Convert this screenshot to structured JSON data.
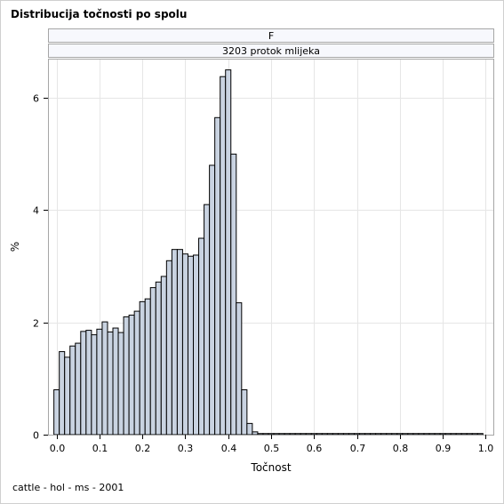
{
  "title": "Distribucija točnosti po spolu",
  "footnote": "cattle - hol - ms - 2001",
  "panel": {
    "row1": "F",
    "row2": "3203 protok mlijeka"
  },
  "colors": {
    "bar_fill": "#c9d3e1",
    "bar_stroke": "#000000",
    "grid": "#e6e6e6",
    "strip_bg": "#f7f8fd"
  },
  "chart_data": {
    "type": "bar",
    "subtype": "histogram",
    "xlabel": "Točnost",
    "ylabel": "%",
    "xlim": [
      -0.02,
      1.02
    ],
    "ylim": [
      0,
      6.7
    ],
    "xticks": [
      "0.0",
      "0.1",
      "0.2",
      "0.3",
      "0.4",
      "0.5",
      "0.6",
      "0.7",
      "0.8",
      "0.9",
      "1.0"
    ],
    "yticks": [
      "0",
      "2",
      "4",
      "6"
    ],
    "grid": true,
    "bin_width": 0.0125,
    "bin_starts": [
      -0.00625,
      0.00625,
      0.01875,
      0.03125,
      0.04375,
      0.05625,
      0.06875,
      0.08125,
      0.09375,
      0.10625,
      0.11875,
      0.13125,
      0.14375,
      0.15625,
      0.16875,
      0.18125,
      0.19375,
      0.20625,
      0.21875,
      0.23125,
      0.24375,
      0.25625,
      0.26875,
      0.28125,
      0.29375,
      0.30625,
      0.31875,
      0.33125,
      0.34375,
      0.35625,
      0.36875,
      0.38125,
      0.39375,
      0.40625,
      0.41875,
      0.43125,
      0.44375,
      0.45625,
      0.46875,
      0.48125,
      0.49375,
      0.50625,
      0.51875,
      0.53125,
      0.54375,
      0.55625,
      0.56875,
      0.58125,
      0.59375,
      0.60625,
      0.61875,
      0.63125,
      0.64375,
      0.65625,
      0.66875,
      0.68125,
      0.69375,
      0.70625,
      0.71875,
      0.73125,
      0.74375,
      0.75625,
      0.76875,
      0.78125,
      0.79375,
      0.80625,
      0.81875,
      0.83125,
      0.84375,
      0.85625,
      0.86875,
      0.88125,
      0.89375,
      0.90625,
      0.91875,
      0.93125,
      0.94375,
      0.95625,
      0.96875,
      0.98125
    ],
    "values": [
      0.8,
      1.48,
      1.38,
      1.58,
      1.63,
      1.84,
      1.86,
      1.78,
      1.88,
      2.01,
      1.83,
      1.9,
      1.82,
      2.1,
      2.13,
      2.2,
      2.37,
      2.42,
      2.62,
      2.72,
      2.82,
      3.1,
      3.3,
      3.3,
      3.22,
      3.18,
      3.2,
      3.5,
      4.1,
      4.8,
      5.65,
      6.38,
      6.5,
      5.0,
      2.35,
      0.8,
      0.2,
      0.05,
      0.02,
      0.02,
      0.02,
      0.02,
      0.02,
      0.02,
      0.02,
      0.02,
      0.02,
      0.02,
      0.02,
      0.02,
      0.02,
      0.02,
      0.02,
      0.02,
      0.02,
      0.02,
      0.02,
      0.02,
      0.02,
      0.02,
      0.02,
      0.02,
      0.02,
      0.02,
      0.02,
      0.02,
      0.02,
      0.02,
      0.02,
      0.02,
      0.02,
      0.02,
      0.02,
      0.02,
      0.02,
      0.02,
      0.02,
      0.02,
      0.02,
      0.02
    ]
  }
}
